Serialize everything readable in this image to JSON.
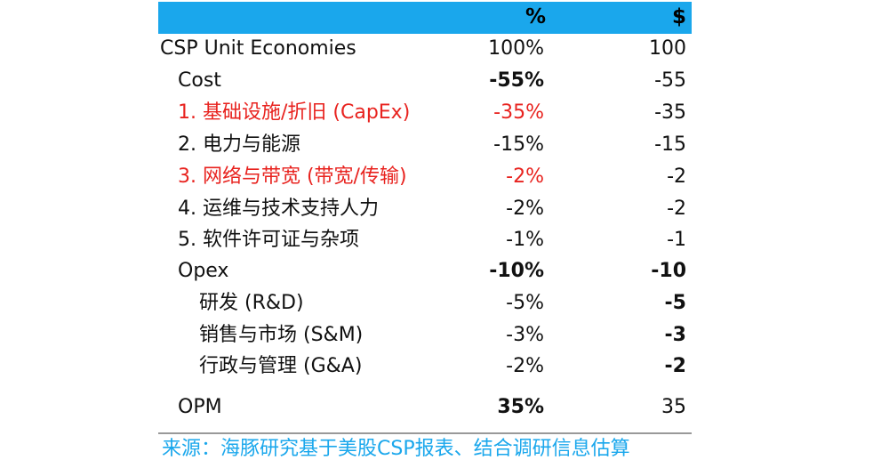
{
  "header": {
    "col_percent": "%",
    "col_dollar": "$"
  },
  "rows": [
    {
      "label": "CSP Unit Economies",
      "pct": "100%",
      "usd": "100",
      "indent": 0,
      "label_red": false,
      "pct_red": false,
      "pct_bold": false,
      "usd_bold": false
    },
    {
      "label": "Cost",
      "pct": "-55%",
      "usd": "-55",
      "indent": 1,
      "label_red": false,
      "pct_red": false,
      "pct_bold": true,
      "usd_bold": false
    },
    {
      "label": "1. 基础设施/折旧 (CapEx)",
      "pct": "-35%",
      "usd": "-35",
      "indent": 1,
      "label_red": true,
      "pct_red": true,
      "pct_bold": false,
      "usd_bold": false
    },
    {
      "label": "2. 电力与能源",
      "pct": "-15%",
      "usd": "-15",
      "indent": 1,
      "label_red": false,
      "pct_red": false,
      "pct_bold": false,
      "usd_bold": false
    },
    {
      "label": "3. 网络与带宽 (带宽/传输)",
      "pct": "-2%",
      "usd": "-2",
      "indent": 1,
      "label_red": true,
      "pct_red": true,
      "pct_bold": false,
      "usd_bold": false
    },
    {
      "label": "4. 运维与技术支持人力",
      "pct": "-2%",
      "usd": "-2",
      "indent": 1,
      "label_red": false,
      "pct_red": false,
      "pct_bold": false,
      "usd_bold": false
    },
    {
      "label": "5. 软件许可证与杂项",
      "pct": "-1%",
      "usd": "-1",
      "indent": 1,
      "label_red": false,
      "pct_red": false,
      "pct_bold": false,
      "usd_bold": false
    },
    {
      "label": "Opex",
      "pct": "-10%",
      "usd": "-10",
      "indent": 1,
      "label_red": false,
      "pct_red": false,
      "pct_bold": true,
      "usd_bold": true
    },
    {
      "label": "研发 (R&D)",
      "pct": "-5%",
      "usd": "-5",
      "indent": 2,
      "label_red": false,
      "pct_red": false,
      "pct_bold": false,
      "usd_bold": true
    },
    {
      "label": "销售与市场 (S&M)",
      "pct": "-3%",
      "usd": "-3",
      "indent": 2,
      "label_red": false,
      "pct_red": false,
      "pct_bold": false,
      "usd_bold": true
    },
    {
      "label": "行政与管理 (G&A)",
      "pct": "-2%",
      "usd": "-2",
      "indent": 2,
      "label_red": false,
      "pct_red": false,
      "pct_bold": false,
      "usd_bold": true
    },
    {
      "label": "OPM",
      "pct": "35%",
      "usd": "35",
      "indent": 1,
      "label_red": false,
      "pct_red": false,
      "pct_bold": true,
      "usd_bold": false
    }
  ],
  "source": "来源：海豚研究基于美股CSP报表、结合调研信息估算",
  "colors": {
    "header_bg": "#1aa7ec",
    "highlight_red": "#e8231f",
    "source_text": "#1aa7ec"
  }
}
